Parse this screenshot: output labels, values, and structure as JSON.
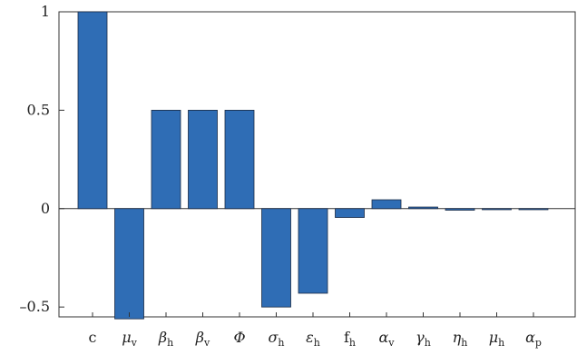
{
  "chart_data": {
    "type": "bar",
    "title": "",
    "xlabel": "",
    "ylabel": "",
    "ylim": [
      -0.55,
      1.0
    ],
    "yticks": [
      -0.5,
      0,
      0.5,
      1
    ],
    "ytick_labels": [
      "–0.5",
      "0",
      "0.5",
      "1"
    ],
    "grid": false,
    "bar_color": "#2f6db5",
    "bar_edge_color": "#1a2a44",
    "categories": [
      {
        "main": "c",
        "sub": "",
        "italic": false
      },
      {
        "main": "μ",
        "sub": "v",
        "italic": true
      },
      {
        "main": "β",
        "sub": "h",
        "italic": true
      },
      {
        "main": "β",
        "sub": "v",
        "italic": true
      },
      {
        "main": "Φ",
        "sub": "",
        "italic": true
      },
      {
        "main": "σ",
        "sub": "h",
        "italic": true
      },
      {
        "main": "ε",
        "sub": "h",
        "italic": true
      },
      {
        "main": "f",
        "sub": "h",
        "italic": false
      },
      {
        "main": "α",
        "sub": "v",
        "italic": true
      },
      {
        "main": "γ",
        "sub": "h",
        "italic": true
      },
      {
        "main": "η",
        "sub": "h",
        "italic": true
      },
      {
        "main": "μ",
        "sub": "h",
        "italic": true
      },
      {
        "main": "α",
        "sub": "p",
        "italic": true
      }
    ],
    "values": [
      1.0,
      -0.56,
      0.5,
      0.5,
      0.5,
      -0.5,
      -0.43,
      -0.045,
      0.045,
      0.008,
      -0.008,
      -0.003,
      -0.002
    ]
  }
}
